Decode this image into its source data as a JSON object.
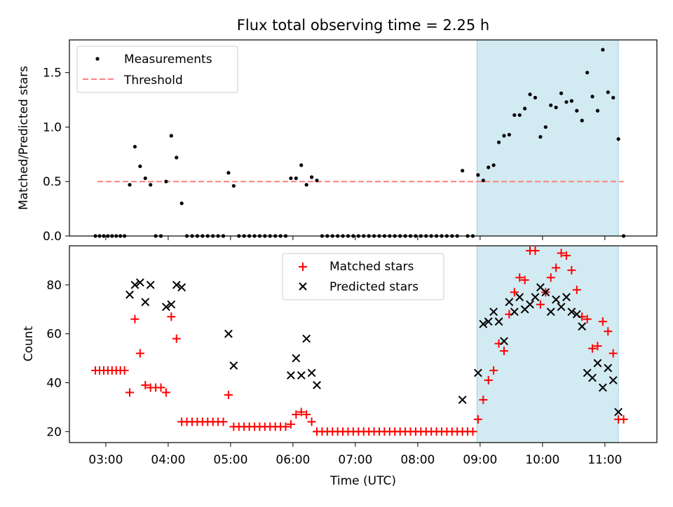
{
  "figure": {
    "title": "Flux total observing time = 2.25 h"
  },
  "chart_data": [
    {
      "type": "scatter",
      "ylabel": "Matched/Predicted stars",
      "xlim": [
        "02:25",
        "11:50"
      ],
      "ylim": [
        0,
        1.8
      ],
      "yticks": [
        0.0,
        0.5,
        1.0,
        1.5
      ],
      "ytick_labels": [
        "0.0",
        "0.5",
        "1.0",
        "1.5"
      ],
      "grid": false,
      "legend_position": "upper-left",
      "legend": [
        "Measurements",
        "Threshold"
      ],
      "highlight": {
        "start": "08:57",
        "end": "11:13",
        "color": "#add8e6"
      },
      "threshold": {
        "name": "Threshold",
        "value": 0.5,
        "x": [
          "02:52",
          "11:18"
        ],
        "color": "#ff7f7f",
        "style": "dashed"
      },
      "series": [
        {
          "name": "Measurements",
          "color": "#000000",
          "points": [
            [
              "02:50",
              0
            ],
            [
              "02:54",
              0
            ],
            [
              "02:58",
              0
            ],
            [
              "03:02",
              0
            ],
            [
              "03:06",
              0
            ],
            [
              "03:10",
              0
            ],
            [
              "03:14",
              0
            ],
            [
              "03:18",
              0
            ],
            [
              "03:23",
              0.47
            ],
            [
              "03:28",
              0.82
            ],
            [
              "03:33",
              0.64
            ],
            [
              "03:38",
              0.53
            ],
            [
              "03:43",
              0.47
            ],
            [
              "03:48",
              0
            ],
            [
              "03:53",
              0
            ],
            [
              "03:58",
              0.5
            ],
            [
              "04:03",
              0.92
            ],
            [
              "04:08",
              0.72
            ],
            [
              "04:13",
              0.3
            ],
            [
              "04:18",
              0
            ],
            [
              "04:23",
              0
            ],
            [
              "04:28",
              0
            ],
            [
              "04:33",
              0
            ],
            [
              "04:38",
              0
            ],
            [
              "04:43",
              0
            ],
            [
              "04:48",
              0
            ],
            [
              "04:53",
              0
            ],
            [
              "04:58",
              0.58
            ],
            [
              "05:03",
              0.46
            ],
            [
              "05:08",
              0
            ],
            [
              "05:13",
              0
            ],
            [
              "05:18",
              0
            ],
            [
              "05:23",
              0
            ],
            [
              "05:28",
              0
            ],
            [
              "05:33",
              0
            ],
            [
              "05:38",
              0
            ],
            [
              "05:43",
              0
            ],
            [
              "05:48",
              0
            ],
            [
              "05:53",
              0
            ],
            [
              "05:58",
              0.53
            ],
            [
              "06:03",
              0.53
            ],
            [
              "06:08",
              0.65
            ],
            [
              "06:13",
              0.47
            ],
            [
              "06:18",
              0.54
            ],
            [
              "06:23",
              0.51
            ],
            [
              "06:28",
              0
            ],
            [
              "06:33",
              0
            ],
            [
              "06:38",
              0
            ],
            [
              "06:43",
              0
            ],
            [
              "06:48",
              0
            ],
            [
              "06:53",
              0
            ],
            [
              "06:58",
              0
            ],
            [
              "07:03",
              0
            ],
            [
              "07:08",
              0
            ],
            [
              "07:13",
              0
            ],
            [
              "07:18",
              0
            ],
            [
              "07:23",
              0
            ],
            [
              "07:28",
              0
            ],
            [
              "07:33",
              0
            ],
            [
              "07:38",
              0
            ],
            [
              "07:43",
              0
            ],
            [
              "07:48",
              0
            ],
            [
              "07:53",
              0
            ],
            [
              "07:58",
              0
            ],
            [
              "08:03",
              0
            ],
            [
              "08:08",
              0
            ],
            [
              "08:13",
              0
            ],
            [
              "08:18",
              0
            ],
            [
              "08:23",
              0
            ],
            [
              "08:28",
              0
            ],
            [
              "08:33",
              0
            ],
            [
              "08:38",
              0
            ],
            [
              "08:43",
              0.6
            ],
            [
              "08:48",
              0
            ],
            [
              "08:53",
              0
            ],
            [
              "08:58",
              0.56
            ],
            [
              "09:03",
              0.51
            ],
            [
              "09:08",
              0.63
            ],
            [
              "09:13",
              0.65
            ],
            [
              "09:18",
              0.86
            ],
            [
              "09:23",
              0.92
            ],
            [
              "09:28",
              0.93
            ],
            [
              "09:33",
              1.11
            ],
            [
              "09:38",
              1.11
            ],
            [
              "09:43",
              1.17
            ],
            [
              "09:48",
              1.3
            ],
            [
              "09:53",
              1.27
            ],
            [
              "09:58",
              0.91
            ],
            [
              "10:03",
              1.0
            ],
            [
              "10:08",
              1.2
            ],
            [
              "10:13",
              1.18
            ],
            [
              "10:18",
              1.31
            ],
            [
              "10:23",
              1.23
            ],
            [
              "10:28",
              1.24
            ],
            [
              "10:33",
              1.15
            ],
            [
              "10:38",
              1.06
            ],
            [
              "10:43",
              1.5
            ],
            [
              "10:48",
              1.28
            ],
            [
              "10:53",
              1.15
            ],
            [
              "10:58",
              1.71
            ],
            [
              "11:03",
              1.32
            ],
            [
              "11:08",
              1.27
            ],
            [
              "11:13",
              0.89
            ],
            [
              "11:18",
              0
            ]
          ]
        }
      ]
    },
    {
      "type": "scatter",
      "xlabel": "Time (UTC)",
      "ylabel": "Count",
      "xlim": [
        "02:25",
        "11:50"
      ],
      "ylim": [
        15.5,
        96
      ],
      "xticks": [
        "03:00",
        "04:00",
        "05:00",
        "06:00",
        "07:00",
        "08:00",
        "09:00",
        "10:00",
        "11:00"
      ],
      "yticks": [
        20,
        40,
        60,
        80
      ],
      "ytick_labels": [
        "20",
        "40",
        "60",
        "80"
      ],
      "grid": false,
      "legend_position": "upper-center",
      "legend": [
        "Matched stars",
        "Predicted stars"
      ],
      "highlight": {
        "start": "08:57",
        "end": "11:13",
        "color": "#add8e6"
      },
      "series": [
        {
          "name": "Matched stars",
          "color": "#ff0000",
          "marker": "+",
          "points": [
            [
              "02:50",
              45
            ],
            [
              "02:54",
              45
            ],
            [
              "02:58",
              45
            ],
            [
              "03:02",
              45
            ],
            [
              "03:06",
              45
            ],
            [
              "03:10",
              45
            ],
            [
              "03:14",
              45
            ],
            [
              "03:18",
              45
            ],
            [
              "03:23",
              36
            ],
            [
              "03:28",
              66
            ],
            [
              "03:33",
              52
            ],
            [
              "03:38",
              39
            ],
            [
              "03:43",
              38
            ],
            [
              "03:48",
              38
            ],
            [
              "03:53",
              38
            ],
            [
              "03:58",
              36
            ],
            [
              "04:03",
              67
            ],
            [
              "04:08",
              58
            ],
            [
              "04:13",
              24
            ],
            [
              "04:18",
              24
            ],
            [
              "04:23",
              24
            ],
            [
              "04:28",
              24
            ],
            [
              "04:33",
              24
            ],
            [
              "04:38",
              24
            ],
            [
              "04:43",
              24
            ],
            [
              "04:48",
              24
            ],
            [
              "04:53",
              24
            ],
            [
              "04:58",
              35
            ],
            [
              "05:03",
              22
            ],
            [
              "05:08",
              22
            ],
            [
              "05:13",
              22
            ],
            [
              "05:18",
              22
            ],
            [
              "05:23",
              22
            ],
            [
              "05:28",
              22
            ],
            [
              "05:33",
              22
            ],
            [
              "05:38",
              22
            ],
            [
              "05:43",
              22
            ],
            [
              "05:48",
              22
            ],
            [
              "05:53",
              22
            ],
            [
              "05:58",
              23
            ],
            [
              "06:03",
              27
            ],
            [
              "06:08",
              28
            ],
            [
              "06:13",
              27
            ],
            [
              "06:18",
              24
            ],
            [
              "06:23",
              20
            ],
            [
              "06:28",
              20
            ],
            [
              "06:33",
              20
            ],
            [
              "06:38",
              20
            ],
            [
              "06:43",
              20
            ],
            [
              "06:48",
              20
            ],
            [
              "06:53",
              20
            ],
            [
              "06:58",
              20
            ],
            [
              "07:03",
              20
            ],
            [
              "07:08",
              20
            ],
            [
              "07:13",
              20
            ],
            [
              "07:18",
              20
            ],
            [
              "07:23",
              20
            ],
            [
              "07:28",
              20
            ],
            [
              "07:33",
              20
            ],
            [
              "07:38",
              20
            ],
            [
              "07:43",
              20
            ],
            [
              "07:48",
              20
            ],
            [
              "07:53",
              20
            ],
            [
              "07:58",
              20
            ],
            [
              "08:03",
              20
            ],
            [
              "08:08",
              20
            ],
            [
              "08:13",
              20
            ],
            [
              "08:18",
              20
            ],
            [
              "08:23",
              20
            ],
            [
              "08:28",
              20
            ],
            [
              "08:33",
              20
            ],
            [
              "08:38",
              20
            ],
            [
              "08:43",
              20
            ],
            [
              "08:48",
              20
            ],
            [
              "08:53",
              20
            ],
            [
              "08:58",
              25
            ],
            [
              "09:03",
              33
            ],
            [
              "09:08",
              41
            ],
            [
              "09:13",
              45
            ],
            [
              "09:18",
              56
            ],
            [
              "09:23",
              53
            ],
            [
              "09:28",
              68
            ],
            [
              "09:33",
              77
            ],
            [
              "09:38",
              83
            ],
            [
              "09:43",
              82
            ],
            [
              "09:48",
              94
            ],
            [
              "09:53",
              94
            ],
            [
              "09:58",
              72
            ],
            [
              "10:03",
              77
            ],
            [
              "10:08",
              83
            ],
            [
              "10:13",
              87
            ],
            [
              "10:18",
              93
            ],
            [
              "10:23",
              92
            ],
            [
              "10:28",
              86
            ],
            [
              "10:33",
              78
            ],
            [
              "10:38",
              67
            ],
            [
              "10:43",
              66
            ],
            [
              "10:48",
              54
            ],
            [
              "10:53",
              55
            ],
            [
              "10:58",
              65
            ],
            [
              "11:03",
              61
            ],
            [
              "11:08",
              52
            ],
            [
              "11:13",
              25
            ],
            [
              "11:18",
              25
            ]
          ]
        },
        {
          "name": "Predicted stars",
          "color": "#000000",
          "marker": "x",
          "points": [
            [
              "03:23",
              76
            ],
            [
              "03:28",
              80
            ],
            [
              "03:33",
              81
            ],
            [
              "03:38",
              73
            ],
            [
              "03:43",
              80
            ],
            [
              "03:58",
              71
            ],
            [
              "04:03",
              72
            ],
            [
              "04:08",
              80
            ],
            [
              "04:13",
              79
            ],
            [
              "04:58",
              60
            ],
            [
              "05:03",
              47
            ],
            [
              "05:58",
              43
            ],
            [
              "06:03",
              50
            ],
            [
              "06:08",
              43
            ],
            [
              "06:13",
              58
            ],
            [
              "06:18",
              44
            ],
            [
              "06:23",
              39
            ],
            [
              "08:43",
              33
            ],
            [
              "08:58",
              44
            ],
            [
              "09:03",
              64
            ],
            [
              "09:08",
              65
            ],
            [
              "09:13",
              69
            ],
            [
              "09:18",
              65
            ],
            [
              "09:23",
              57
            ],
            [
              "09:28",
              73
            ],
            [
              "09:33",
              69
            ],
            [
              "09:38",
              75
            ],
            [
              "09:43",
              70
            ],
            [
              "09:48",
              72
            ],
            [
              "09:53",
              75
            ],
            [
              "09:58",
              79
            ],
            [
              "10:03",
              77
            ],
            [
              "10:08",
              69
            ],
            [
              "10:13",
              74
            ],
            [
              "10:18",
              71
            ],
            [
              "10:23",
              75
            ],
            [
              "10:28",
              69
            ],
            [
              "10:33",
              68
            ],
            [
              "10:38",
              63
            ],
            [
              "10:43",
              44
            ],
            [
              "10:48",
              42
            ],
            [
              "10:53",
              48
            ],
            [
              "10:58",
              38
            ],
            [
              "11:03",
              46
            ],
            [
              "11:08",
              41
            ],
            [
              "11:13",
              28
            ]
          ]
        }
      ]
    }
  ]
}
